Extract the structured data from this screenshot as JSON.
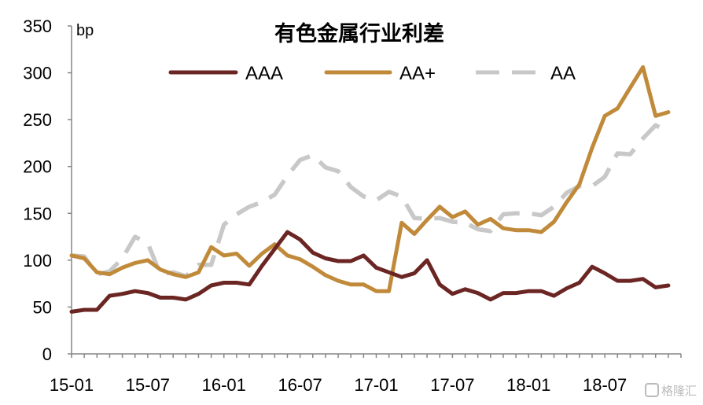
{
  "chart_data": {
    "type": "line",
    "title": "有色金属行业利差",
    "ylabel": "bp",
    "xlabel": "",
    "ylim": [
      0,
      350
    ],
    "y_ticks": [
      0,
      50,
      100,
      150,
      200,
      250,
      300,
      350
    ],
    "x_tick_labels": [
      "15-01",
      "15-07",
      "16-01",
      "16-07",
      "17-01",
      "17-07",
      "18-01",
      "18-07"
    ],
    "grid": false,
    "legend_position": "top",
    "x": [
      "2015-01",
      "2015-02",
      "2015-03",
      "2015-04",
      "2015-05",
      "2015-06",
      "2015-07",
      "2015-08",
      "2015-09",
      "2015-10",
      "2015-11",
      "2015-12",
      "2016-01",
      "2016-02",
      "2016-03",
      "2016-04",
      "2016-05",
      "2016-06",
      "2016-07",
      "2016-08",
      "2016-09",
      "2016-10",
      "2016-11",
      "2016-12",
      "2017-01",
      "2017-02",
      "2017-03",
      "2017-04",
      "2017-05",
      "2017-06",
      "2017-07",
      "2017-08",
      "2017-09",
      "2017-10",
      "2017-11",
      "2017-12",
      "2018-01",
      "2018-02",
      "2018-03",
      "2018-04",
      "2018-05",
      "2018-06",
      "2018-07",
      "2018-08",
      "2018-09",
      "2018-10",
      "2018-11",
      "2018-12"
    ],
    "series": [
      {
        "name": "AAA",
        "color": "#6b2624",
        "dash": "solid",
        "values": [
          45,
          47,
          47,
          62,
          64,
          67,
          65,
          60,
          60,
          58,
          64,
          73,
          76,
          76,
          74,
          94,
          112,
          130,
          122,
          108,
          102,
          99,
          99,
          105,
          92,
          87,
          82,
          86,
          100,
          74,
          64,
          69,
          65,
          58,
          65,
          65,
          67,
          67,
          62,
          70,
          76,
          93,
          86,
          78,
          78,
          80,
          71,
          73
        ]
      },
      {
        "name": "AA+",
        "color": "#c08a3a",
        "dash": "solid",
        "values": [
          105,
          102,
          87,
          85,
          92,
          97,
          100,
          90,
          85,
          82,
          87,
          114,
          105,
          107,
          94,
          107,
          117,
          105,
          101,
          93,
          84,
          78,
          74,
          74,
          67,
          67,
          140,
          128,
          143,
          157,
          146,
          152,
          138,
          144,
          134,
          132,
          132,
          130,
          141,
          162,
          181,
          220,
          254,
          262,
          284,
          306,
          254,
          258
        ]
      },
      {
        "name": "AA",
        "color": "#c8c8c8",
        "dash": "dashed",
        "values": [
          105,
          104,
          85,
          88,
          102,
          125,
          118,
          85,
          87,
          83,
          95,
          95,
          138,
          149,
          157,
          162,
          170,
          190,
          207,
          212,
          199,
          195,
          178,
          168,
          164,
          173,
          168,
          145,
          144,
          145,
          141,
          140,
          133,
          131,
          149,
          150,
          150,
          148,
          157,
          172,
          179,
          179,
          189,
          214,
          213,
          230,
          244,
          237
        ]
      }
    ]
  },
  "watermark": "格隆汇"
}
